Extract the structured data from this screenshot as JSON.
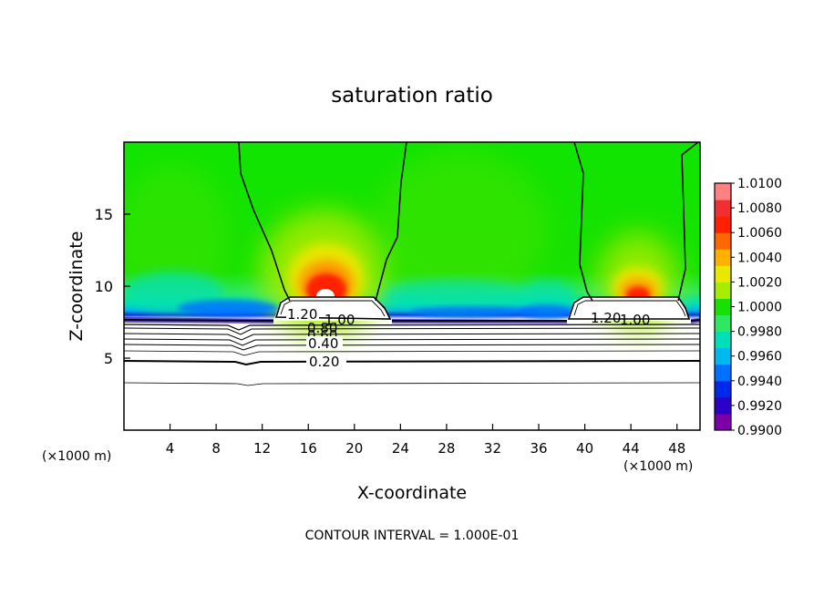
{
  "chart_data": {
    "type": "heatmap",
    "title": "saturation ratio",
    "xlabel": "X-coordinate",
    "ylabel": "Z-coordinate",
    "x_unit": "(×1000 m)",
    "y_unit": "(×1000 m)",
    "xlim": [
      0,
      50
    ],
    "ylim": [
      0,
      20
    ],
    "x_ticks": [
      "4",
      "8",
      "12",
      "16",
      "20",
      "24",
      "28",
      "32",
      "36",
      "40",
      "44",
      "48"
    ],
    "y_ticks": [
      "5",
      "10",
      "15"
    ],
    "colorbar": {
      "labels": [
        "1.0100",
        "1.0080",
        "1.0060",
        "1.0040",
        "1.0020",
        "1.0000",
        "0.9980",
        "0.9960",
        "0.9940",
        "0.9920",
        "0.9900"
      ],
      "min": 0.99,
      "max": 1.01,
      "colors": [
        "#7b00a8",
        "#2b00c8",
        "#0028e8",
        "#0070ff",
        "#00b8f0",
        "#00e0b8",
        "#30e860",
        "#18e000",
        "#a8ec00",
        "#e8e800",
        "#ffb000",
        "#ff6800",
        "#ff2000",
        "#f03030",
        "#ff8080"
      ]
    },
    "contour_labels": [
      {
        "text": "1.20"
      },
      {
        "text": "1.00"
      },
      {
        "text": "0.80"
      },
      {
        "text": "0.60"
      },
      {
        "text": "0.40"
      },
      {
        "text": "0.20"
      },
      {
        "text": "1.20"
      },
      {
        "text": "1.00"
      }
    ],
    "contour_interval_text": "CONTOUR INTERVAL = 1.000E-01",
    "x_unit_left": "(×1000 m)"
  }
}
